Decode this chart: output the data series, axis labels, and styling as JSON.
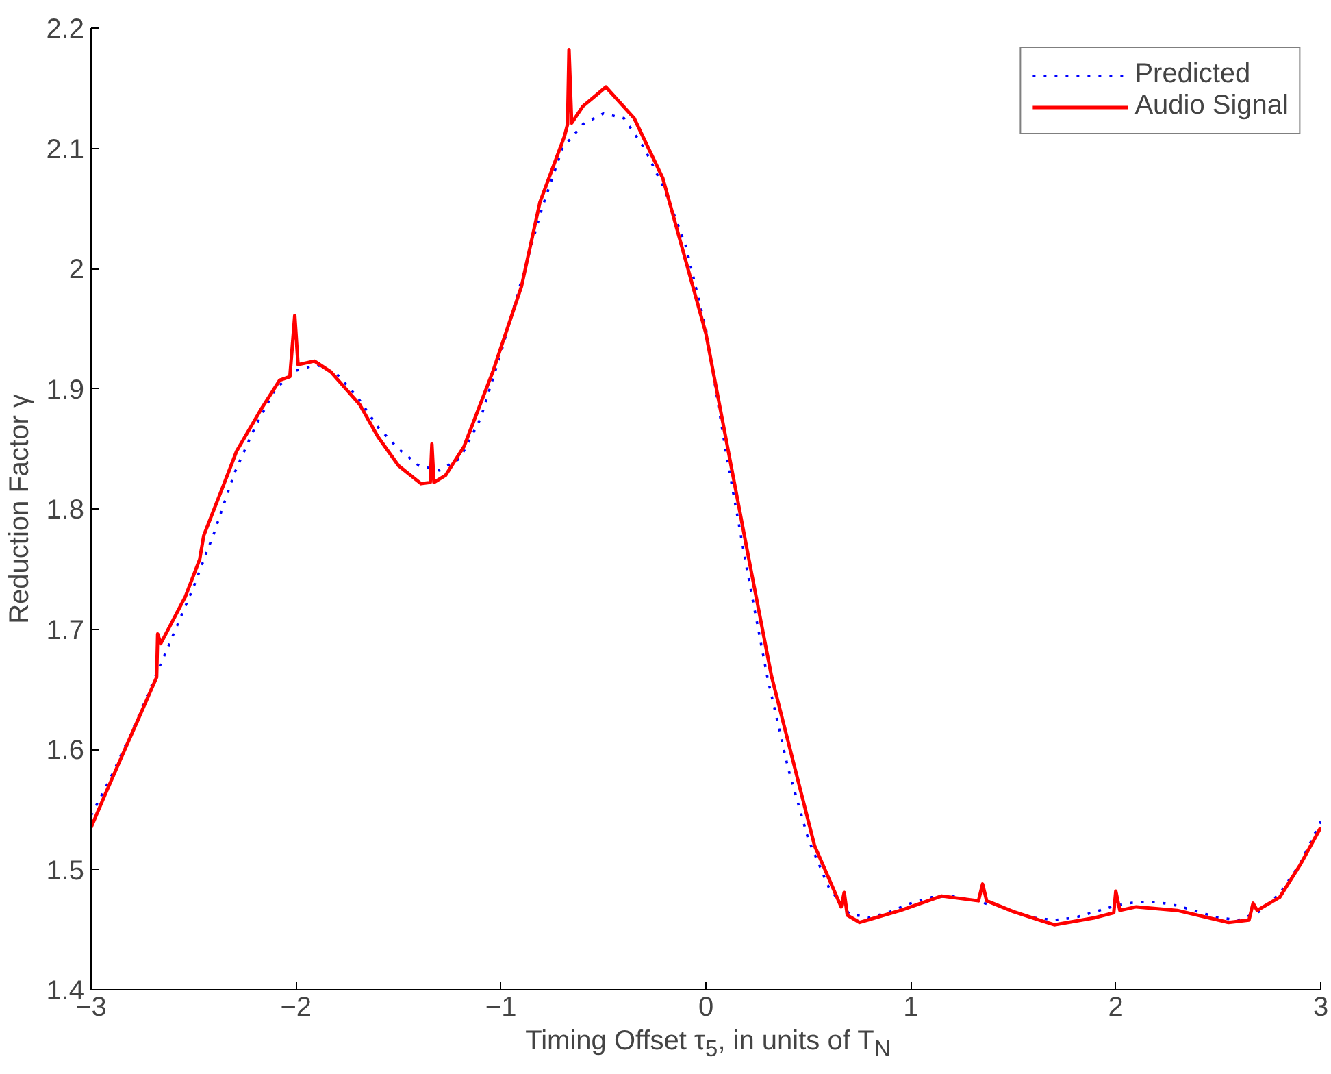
{
  "chart_data": {
    "type": "line",
    "xlabel": "Timing Offset τ$_{5}$, in units of T$_{N}$",
    "ylabel": "Reduction Factor γ",
    "xlim": [
      -3,
      3
    ],
    "ylim": [
      1.4,
      2.2
    ],
    "xticks": [
      {
        "value": -3,
        "label": "−3"
      },
      {
        "value": -2,
        "label": "−2"
      },
      {
        "value": -1,
        "label": "−1"
      },
      0,
      1,
      2,
      3
    ],
    "yticks": [
      1.4,
      1.5,
      1.6,
      1.7,
      1.8,
      1.9,
      2,
      2.1,
      2.2
    ],
    "grid": false,
    "legend": "top right",
    "series": [
      {
        "name": "Predicted",
        "color": "#0000ff",
        "line_style": "dotted",
        "x": [
          -3,
          -2.9,
          -2.8,
          -2.7,
          -2.6,
          -2.5,
          -2.4,
          -2.3,
          -2.2,
          -2.1,
          -2.0,
          -1.9,
          -1.8,
          -1.7,
          -1.6,
          -1.5,
          -1.4,
          -1.3,
          -1.2,
          -1.1,
          -1.0,
          -0.9,
          -0.8,
          -0.7,
          -0.6,
          -0.5,
          -0.4,
          -0.3,
          -0.2,
          -0.1,
          0,
          0.1,
          0.2,
          0.3,
          0.4,
          0.5,
          0.6,
          0.7,
          0.8,
          0.9,
          1.0,
          1.1,
          1.2,
          1.3,
          1.4,
          1.5,
          1.6,
          1.7,
          1.8,
          1.9,
          2.0,
          2.1,
          2.2,
          2.3,
          2.4,
          2.5,
          2.6,
          2.7,
          2.8,
          2.9,
          3
        ],
        "values": [
          1.545,
          1.578,
          1.615,
          1.655,
          1.695,
          1.735,
          1.78,
          1.83,
          1.868,
          1.9,
          1.915,
          1.92,
          1.912,
          1.893,
          1.868,
          1.85,
          1.836,
          1.832,
          1.842,
          1.875,
          1.93,
          1.99,
          2.05,
          2.1,
          2.12,
          2.129,
          2.125,
          2.1,
          2.065,
          2.02,
          1.95,
          1.845,
          1.75,
          1.66,
          1.585,
          1.525,
          1.485,
          1.463,
          1.46,
          1.465,
          1.472,
          1.477,
          1.478,
          1.475,
          1.47,
          null,
          1.46,
          1.458,
          1.46,
          1.465,
          1.47,
          1.473,
          1.473,
          1.47,
          1.465,
          1.46,
          1.458,
          1.465,
          1.48,
          1.505,
          1.54
        ]
      },
      {
        "name": "Audio Signal",
        "color": "#ff0000",
        "line_style": "solid",
        "x": [
          -3,
          -2.93,
          -2.84,
          -2.77,
          -2.68,
          -2.675,
          -2.66,
          -2.54,
          -2.47,
          -2.45,
          -2.36,
          -2.29,
          -2.17,
          -2.08,
          -2.03,
          -2.006,
          -1.99,
          -1.91,
          -1.83,
          -1.69,
          -1.6,
          -1.5,
          -1.39,
          -1.345,
          -1.337,
          -1.327,
          -1.27,
          -1.18,
          -1.04,
          -0.9,
          -0.81,
          -0.69,
          -0.675,
          -0.668,
          -0.655,
          -0.6,
          -0.488,
          -0.35,
          -0.21,
          0,
          0.21,
          0.32,
          0.53,
          0.66,
          0.675,
          0.69,
          0.75,
          0.95,
          1.15,
          1.33,
          1.35,
          1.37,
          1.5,
          1.7,
          1.9,
          1.99,
          2.0,
          2.02,
          2.1,
          2.3,
          2.55,
          2.65,
          2.67,
          2.69,
          2.8,
          2.9,
          3
        ],
        "values": [
          1.535,
          1.563,
          1.598,
          1.625,
          1.66,
          1.696,
          1.688,
          1.727,
          1.758,
          1.778,
          1.817,
          1.848,
          1.883,
          1.907,
          1.91,
          1.961,
          1.92,
          1.923,
          1.914,
          1.887,
          1.86,
          1.836,
          1.821,
          1.822,
          1.854,
          1.822,
          1.828,
          1.852,
          1.914,
          1.985,
          2.055,
          2.11,
          2.12,
          2.182,
          2.121,
          2.135,
          2.151,
          2.125,
          2.075,
          1.946,
          1.758,
          1.661,
          1.52,
          1.469,
          1.481,
          1.462,
          1.456,
          1.466,
          1.478,
          1.474,
          1.488,
          1.474,
          1.465,
          1.454,
          1.46,
          1.464,
          1.482,
          1.466,
          1.469,
          1.466,
          1.456,
          1.458,
          1.472,
          1.466,
          1.477,
          1.504,
          1.535
        ]
      }
    ]
  }
}
